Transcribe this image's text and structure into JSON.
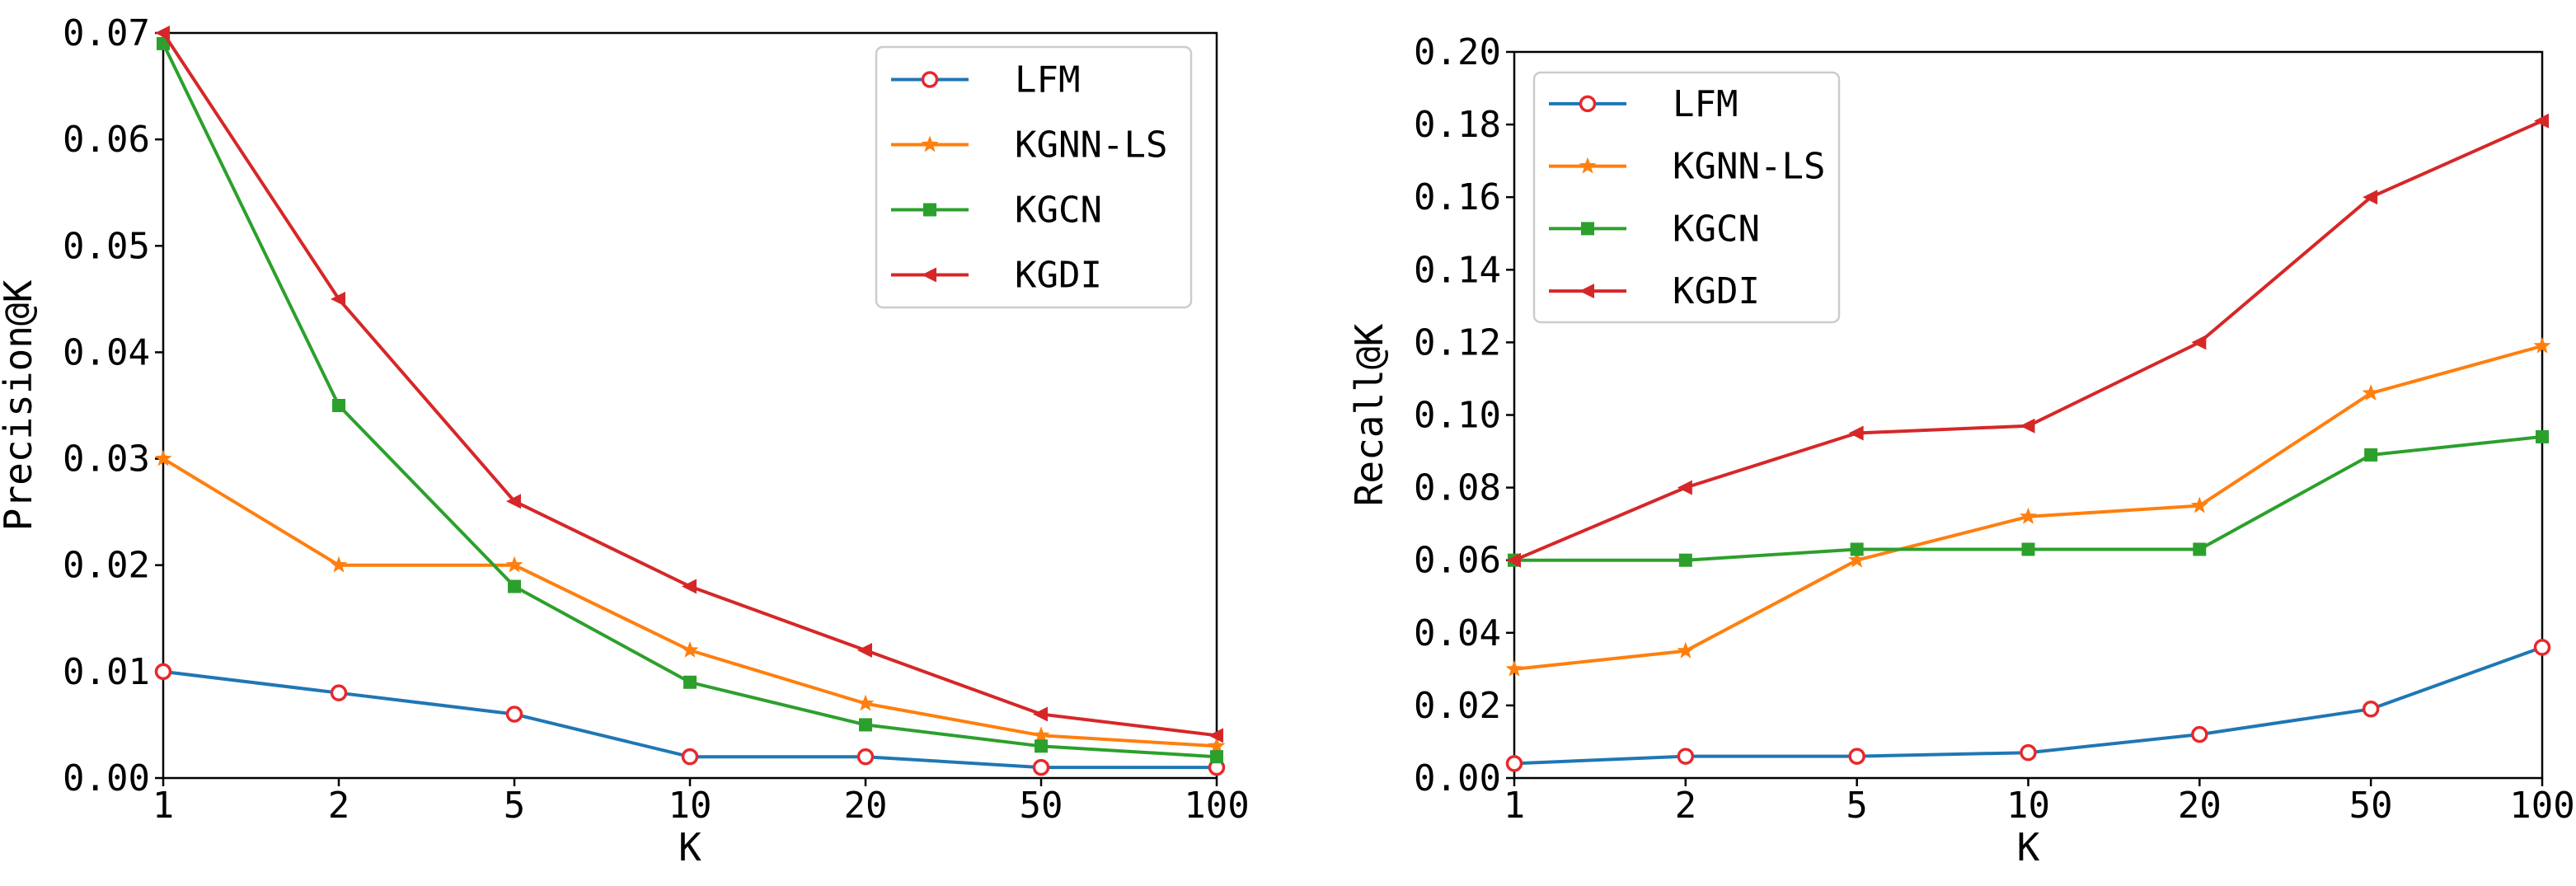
{
  "colors": {
    "LFM": "#1f77b4",
    "KGNN-LS": "#ff7f0e",
    "KGCN": "#2ca02c",
    "KGDI": "#d62728",
    "LFM_marker_edge": "#e8282b",
    "axes": "#000000",
    "legend_border": "#cccccc"
  },
  "chart_data": [
    {
      "type": "line",
      "title": "",
      "categories": [
        "1",
        "2",
        "5",
        "10",
        "20",
        "50",
        "100"
      ],
      "xlabel": "K",
      "ylabel": "Precision@K",
      "ylim": [
        0,
        0.07
      ],
      "yticks": [
        "0.00",
        "0.01",
        "0.02",
        "0.03",
        "0.04",
        "0.05",
        "0.06",
        "0.07"
      ],
      "legend_position": "top-right",
      "grid": false,
      "series": [
        {
          "name": "LFM",
          "marker": "circle-open",
          "values": [
            0.01,
            0.008,
            0.006,
            0.002,
            0.002,
            0.001,
            0.001
          ]
        },
        {
          "name": "KGNN-LS",
          "marker": "star",
          "values": [
            0.03,
            0.02,
            0.02,
            0.012,
            0.007,
            0.004,
            0.003
          ]
        },
        {
          "name": "KGCN",
          "marker": "square",
          "values": [
            0.069,
            0.035,
            0.018,
            0.009,
            0.005,
            0.003,
            0.002
          ]
        },
        {
          "name": "KGDI",
          "marker": "triangle-left",
          "values": [
            0.07,
            0.045,
            0.026,
            0.018,
            0.012,
            0.006,
            0.004
          ]
        }
      ]
    },
    {
      "type": "line",
      "title": "",
      "categories": [
        "1",
        "2",
        "5",
        "10",
        "20",
        "50",
        "100"
      ],
      "xlabel": "K",
      "ylabel": "Recall@K",
      "ylim": [
        0,
        0.2
      ],
      "yticks": [
        "0.00",
        "0.02",
        "0.04",
        "0.06",
        "0.08",
        "0.10",
        "0.12",
        "0.14",
        "0.16",
        "0.18",
        "0.20"
      ],
      "legend_position": "top-left",
      "grid": false,
      "series": [
        {
          "name": "LFM",
          "marker": "circle-open",
          "values": [
            0.004,
            0.006,
            0.006,
            0.007,
            0.012,
            0.019,
            0.036
          ]
        },
        {
          "name": "KGNN-LS",
          "marker": "star",
          "values": [
            0.03,
            0.035,
            0.06,
            0.072,
            0.075,
            0.106,
            0.119
          ]
        },
        {
          "name": "KGCN",
          "marker": "square",
          "values": [
            0.06,
            0.06,
            0.063,
            0.063,
            0.063,
            0.089,
            0.094
          ]
        },
        {
          "name": "KGDI",
          "marker": "triangle-left",
          "values": [
            0.06,
            0.08,
            0.095,
            0.097,
            0.12,
            0.16,
            0.181
          ]
        }
      ]
    }
  ]
}
